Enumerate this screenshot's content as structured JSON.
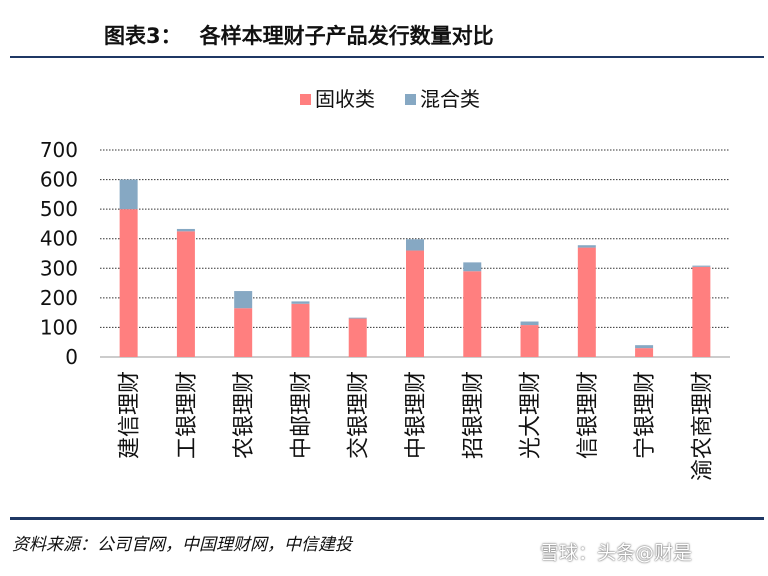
{
  "header": {
    "figure_number": "图表3：",
    "title": "各样本理财子产品发行数量对比"
  },
  "footer": {
    "source": "资料来源：公司官网，中国理财网，中信建投",
    "watermark": "雪球：头条@财是"
  },
  "colors": {
    "fixed_income": "#ff7f7f",
    "mixed": "#86a8c3",
    "rule": "#1f3864"
  },
  "chart_data": {
    "type": "bar",
    "stacked": true,
    "categories": [
      "建信理财",
      "工银理财",
      "农银理财",
      "中邮理财",
      "交银理财",
      "中银理财",
      "招银理财",
      "光大理财",
      "信银理财",
      "宁银理财",
      "渝农商理财"
    ],
    "series": [
      {
        "name": "固收类",
        "color": "#ff7f7f",
        "values": [
          500,
          425,
          165,
          180,
          130,
          360,
          290,
          108,
          370,
          30,
          305
        ]
      },
      {
        "name": "混合类",
        "color": "#86a8c3",
        "values": [
          100,
          8,
          58,
          8,
          3,
          38,
          30,
          12,
          8,
          10,
          4
        ]
      }
    ],
    "yticks": [
      "0",
      "100",
      "200",
      "300",
      "400",
      "500",
      "600",
      "700"
    ],
    "ylim": [
      0,
      700
    ],
    "grid": true,
    "legend_position": "top"
  }
}
